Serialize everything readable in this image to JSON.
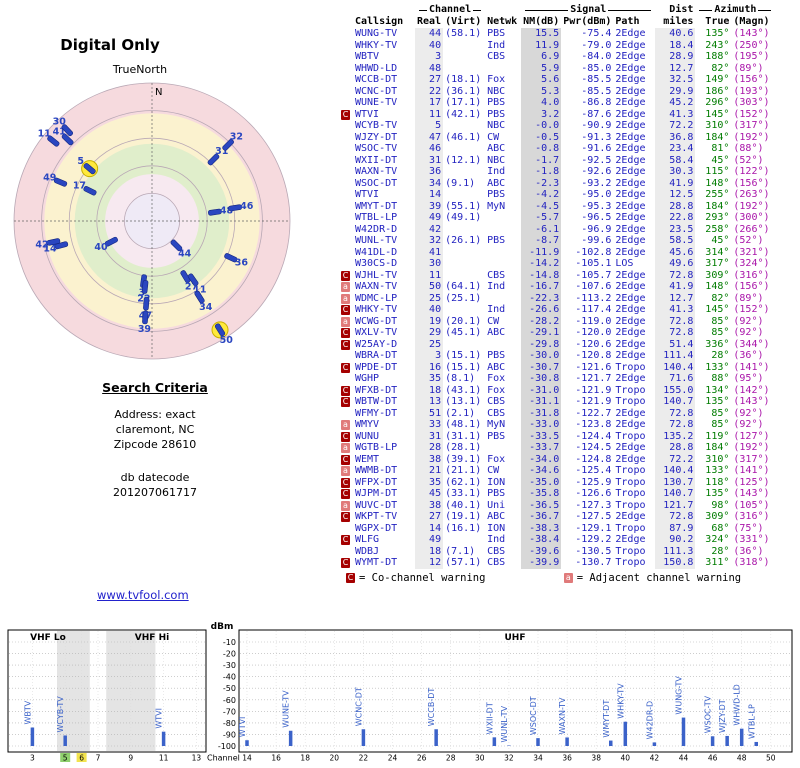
{
  "page": {
    "title": "Digital Only"
  },
  "radar": {
    "north": "N",
    "true_north": "TrueNorth",
    "markers": [
      {
        "ch": "44",
        "az": 135,
        "r": 0.25,
        "hl": false
      },
      {
        "ch": "40",
        "az": 243,
        "r": 0.33,
        "hl": false
      },
      {
        "ch": "3",
        "az": 188,
        "r": 0.44,
        "hl": false
      },
      {
        "ch": "48",
        "az": 82,
        "r": 0.46,
        "hl": false
      },
      {
        "ch": "27",
        "az": 149,
        "r": 0.47,
        "hl": false
      },
      {
        "ch": "22",
        "az": 186,
        "r": 0.48,
        "hl": false
      },
      {
        "ch": "17",
        "az": 296,
        "r": 0.5,
        "hl": false
      },
      {
        "ch": "11",
        "az": 145,
        "r": 0.52,
        "hl": false
      },
      {
        "ch": "5",
        "az": 310,
        "r": 0.59,
        "hl": true
      },
      {
        "ch": "47",
        "az": 184,
        "r": 0.6,
        "hl": false
      },
      {
        "ch": "46",
        "az": 81,
        "r": 0.61,
        "hl": false
      },
      {
        "ch": "31",
        "az": 45,
        "r": 0.63,
        "hl": false
      },
      {
        "ch": "36",
        "az": 115,
        "r": 0.63,
        "hl": false
      },
      {
        "ch": "34",
        "az": 148,
        "r": 0.65,
        "hl": false
      },
      {
        "ch": "14",
        "az": 255,
        "r": 0.68,
        "hl": false
      },
      {
        "ch": "39",
        "az": 184,
        "r": 0.7,
        "hl": false
      },
      {
        "ch": "49",
        "az": 293,
        "r": 0.72,
        "hl": false
      },
      {
        "ch": "42",
        "az": 258,
        "r": 0.73,
        "hl": false
      },
      {
        "ch": "32",
        "az": 45,
        "r": 0.78,
        "hl": false
      },
      {
        "ch": "41",
        "az": 314,
        "r": 0.85,
        "hl": false
      },
      {
        "ch": "30",
        "az": 317,
        "r": 0.9,
        "hl": false
      },
      {
        "ch": "11",
        "az": 309,
        "r": 0.92,
        "hl": false
      },
      {
        "ch": "50",
        "az": 148,
        "r": 0.93,
        "hl": true
      }
    ]
  },
  "search": {
    "heading": "Search Criteria",
    "address_lines": [
      "Address: exact",
      "claremont, NC",
      "Zipcode 28610"
    ],
    "datecode_lines": [
      "db datecode",
      "201207061717"
    ]
  },
  "link": {
    "url_text": "www.tvfool.com"
  },
  "table": {
    "group_headers": {
      "channel": "Channel",
      "signal": "Signal",
      "dist": "Dist",
      "azimuth": "Azimuth"
    },
    "columns": {
      "callsign": "Callsign",
      "real": "Real",
      "virt": "(Virt)",
      "netwk": "Netwk",
      "nm": "NM(dB)",
      "pwr": "Pwr(dBm)",
      "path": "Path",
      "miles": "miles",
      "true": "True",
      "magn": "(Magn)"
    },
    "row_fields": [
      "warn",
      "callsign",
      "real",
      "virt",
      "netwk",
      "nm_db",
      "pwr_dbm",
      "path",
      "miles",
      "az_true",
      "az_magn"
    ],
    "rows": [
      [
        "",
        "WUNG-TV",
        "44",
        "(58.1)",
        "PBS",
        "15.5",
        "-75.4",
        "2Edge",
        "40.6",
        "135°",
        "(143°)"
      ],
      [
        "",
        "WHKY-TV",
        "40",
        "",
        "Ind",
        "11.9",
        "-79.0",
        "2Edge",
        "18.4",
        "243°",
        "(250°)"
      ],
      [
        "",
        "WBTV",
        "3",
        "",
        "CBS",
        "6.9",
        "-84.0",
        "2Edge",
        "28.9",
        "188°",
        "(195°)"
      ],
      [
        "",
        "WHWD-LD",
        "48",
        "",
        "",
        "5.9",
        "-85.0",
        "2Edge",
        "12.7",
        "82°",
        "(89°)"
      ],
      [
        "",
        "WCCB-DT",
        "27",
        "(18.1)",
        "Fox",
        "5.6",
        "-85.5",
        "2Edge",
        "32.5",
        "149°",
        "(156°)"
      ],
      [
        "",
        "WCNC-DT",
        "22",
        "(36.1)",
        "NBC",
        "5.3",
        "-85.5",
        "2Edge",
        "29.9",
        "186°",
        "(193°)"
      ],
      [
        "",
        "WUNE-TV",
        "17",
        "(17.1)",
        "PBS",
        "4.0",
        "-86.8",
        "2Edge",
        "45.2",
        "296°",
        "(303°)"
      ],
      [
        "C",
        "WTVI",
        "11",
        "(42.1)",
        "PBS",
        "3.2",
        "-87.6",
        "2Edge",
        "41.3",
        "145°",
        "(152°)"
      ],
      [
        "",
        "WCYB-TV",
        "5",
        "",
        "NBC",
        "-0.0",
        "-90.9",
        "2Edge",
        "72.2",
        "310°",
        "(317°)"
      ],
      [
        "",
        "WJZY-DT",
        "47",
        "(46.1)",
        "CW",
        "-0.5",
        "-91.3",
        "2Edge",
        "36.8",
        "184°",
        "(192°)"
      ],
      [
        "",
        "WSOC-TV",
        "46",
        "",
        "ABC",
        "-0.8",
        "-91.6",
        "2Edge",
        "23.4",
        "81°",
        "(88°)"
      ],
      [
        "",
        "WXII-DT",
        "31",
        "(12.1)",
        "NBC",
        "-1.7",
        "-92.5",
        "2Edge",
        "58.4",
        "45°",
        "(52°)"
      ],
      [
        "",
        "WAXN-TV",
        "36",
        "",
        "Ind",
        "-1.8",
        "-92.6",
        "2Edge",
        "30.3",
        "115°",
        "(122°)"
      ],
      [
        "",
        "WSOC-DT",
        "34",
        "(9.1)",
        "ABC",
        "-2.3",
        "-93.2",
        "2Edge",
        "41.9",
        "148°",
        "(156°)"
      ],
      [
        "",
        "WTVI",
        "14",
        "",
        "PBS",
        "-4.2",
        "-95.0",
        "2Edge",
        "12.5",
        "255°",
        "(263°)"
      ],
      [
        "",
        "WMYT-DT",
        "39",
        "(55.1)",
        "MyN",
        "-4.5",
        "-95.3",
        "2Edge",
        "28.8",
        "184°",
        "(192°)"
      ],
      [
        "",
        "WTBL-LP",
        "49",
        "(49.1)",
        "",
        "-5.7",
        "-96.5",
        "2Edge",
        "22.8",
        "293°",
        "(300°)"
      ],
      [
        "",
        "W42DR-D",
        "42",
        "",
        "",
        "-6.1",
        "-96.9",
        "2Edge",
        "23.5",
        "258°",
        "(266°)"
      ],
      [
        "",
        "WUNL-TV",
        "32",
        "(26.1)",
        "PBS",
        "-8.7",
        "-99.6",
        "2Edge",
        "58.5",
        "45°",
        "(52°)"
      ],
      [
        "",
        "W41DL-D",
        "41",
        "",
        "",
        "-11.9",
        "-102.8",
        "2Edge",
        "45.6",
        "314°",
        "(321°)"
      ],
      [
        "",
        "W30CS-D",
        "30",
        "",
        "",
        "-14.2",
        "-105.1",
        "LOS",
        "49.6",
        "317°",
        "(324°)"
      ],
      [
        "C",
        "WJHL-TV",
        "11",
        "",
        "CBS",
        "-14.8",
        "-105.7",
        "2Edge",
        "72.8",
        "309°",
        "(316°)"
      ],
      [
        "a",
        "WAXN-TV",
        "50",
        "(64.1)",
        "Ind",
        "-16.7",
        "-107.6",
        "2Edge",
        "41.9",
        "148°",
        "(156°)"
      ],
      [
        "a",
        "WDMC-LP",
        "25",
        "(25.1)",
        "",
        "-22.3",
        "-113.2",
        "2Edge",
        "12.7",
        "82°",
        "(89°)"
      ],
      [
        "C",
        "WHKY-TV",
        "40",
        "",
        "Ind",
        "-26.6",
        "-117.4",
        "2Edge",
        "41.3",
        "145°",
        "(152°)"
      ],
      [
        "a",
        "WCWG-DT",
        "19",
        "(20.1)",
        "CW",
        "-28.2",
        "-119.0",
        "2Edge",
        "72.8",
        "85°",
        "(92°)"
      ],
      [
        "C",
        "WXLV-TV",
        "29",
        "(45.1)",
        "ABC",
        "-29.1",
        "-120.0",
        "2Edge",
        "72.8",
        "85°",
        "(92°)"
      ],
      [
        "C",
        "W25AY-D",
        "25",
        "",
        "",
        "-29.8",
        "-120.6",
        "2Edge",
        "51.4",
        "336°",
        "(344°)"
      ],
      [
        "",
        "WBRA-DT",
        "3",
        "(15.1)",
        "PBS",
        "-30.0",
        "-120.8",
        "2Edge",
        "111.4",
        "28°",
        "(36°)"
      ],
      [
        "C",
        "WPDE-DT",
        "16",
        "(15.1)",
        "ABC",
        "-30.7",
        "-121.6",
        "Tropo",
        "140.4",
        "133°",
        "(141°)"
      ],
      [
        "",
        "WGHP",
        "35",
        "(8.1)",
        "Fox",
        "-30.8",
        "-121.7",
        "2Edge",
        "71.6",
        "88°",
        "(95°)"
      ],
      [
        "C",
        "WFXB-DT",
        "18",
        "(43.1)",
        "Fox",
        "-31.0",
        "-121.9",
        "Tropo",
        "155.0",
        "134°",
        "(142°)"
      ],
      [
        "C",
        "WBTW-DT",
        "13",
        "(13.1)",
        "CBS",
        "-31.1",
        "-121.9",
        "Tropo",
        "140.7",
        "135°",
        "(143°)"
      ],
      [
        "",
        "WFMY-DT",
        "51",
        "(2.1)",
        "CBS",
        "-31.8",
        "-122.7",
        "2Edge",
        "72.8",
        "85°",
        "(92°)"
      ],
      [
        "a",
        "WMYV",
        "33",
        "(48.1)",
        "MyN",
        "-33.0",
        "-123.8",
        "2Edge",
        "72.8",
        "85°",
        "(92°)"
      ],
      [
        "C",
        "WUNU",
        "31",
        "(31.1)",
        "PBS",
        "-33.5",
        "-124.4",
        "Tropo",
        "135.2",
        "119°",
        "(127°)"
      ],
      [
        "a",
        "WGTB-LP",
        "28",
        "(28.1)",
        "",
        "-33.7",
        "-124.5",
        "2Edge",
        "28.8",
        "184°",
        "(192°)"
      ],
      [
        "C",
        "WEMT",
        "38",
        "(39.1)",
        "Fox",
        "-34.0",
        "-124.8",
        "2Edge",
        "72.2",
        "310°",
        "(317°)"
      ],
      [
        "a",
        "WWMB-DT",
        "21",
        "(21.1)",
        "CW",
        "-34.6",
        "-125.4",
        "Tropo",
        "140.4",
        "133°",
        "(141°)"
      ],
      [
        "C",
        "WFPX-DT",
        "35",
        "(62.1)",
        "ION",
        "-35.0",
        "-125.9",
        "Tropo",
        "130.7",
        "118°",
        "(125°)"
      ],
      [
        "C",
        "WJPM-DT",
        "45",
        "(33.1)",
        "PBS",
        "-35.8",
        "-126.6",
        "Tropo",
        "140.7",
        "135°",
        "(143°)"
      ],
      [
        "a",
        "WUVC-DT",
        "38",
        "(40.1)",
        "Uni",
        "-36.5",
        "-127.3",
        "Tropo",
        "121.7",
        "98°",
        "(105°)"
      ],
      [
        "C",
        "WKPT-TV",
        "27",
        "(19.1)",
        "ABC",
        "-36.7",
        "-127.5",
        "2Edge",
        "72.8",
        "309°",
        "(316°)"
      ],
      [
        "",
        "WGPX-DT",
        "14",
        "(16.1)",
        "ION",
        "-38.3",
        "-129.1",
        "Tropo",
        "87.9",
        "68°",
        "(75°)"
      ],
      [
        "C",
        "WLFG",
        "49",
        "",
        "Ind",
        "-38.4",
        "-129.2",
        "2Edge",
        "90.2",
        "324°",
        "(331°)"
      ],
      [
        "",
        "WDBJ",
        "18",
        "(7.1)",
        "CBS",
        "-39.6",
        "-130.5",
        "Tropo",
        "111.3",
        "28°",
        "(36°)"
      ],
      [
        "C",
        "WYMT-DT",
        "12",
        "(57.1)",
        "CBS",
        "-39.9",
        "-130.7",
        "Tropo",
        "150.8",
        "311°",
        "(318°)"
      ]
    ]
  },
  "legend": {
    "c_symbol": "C",
    "c_text": "= Co-channel warning",
    "a_symbol": "a",
    "a_text": "= Adjacent channel warning"
  },
  "chart": {
    "type": "bar",
    "dbm_label": "dBm",
    "channel_label": "Channel",
    "y_ticks": [
      -10,
      -20,
      -30,
      -40,
      -50,
      -60,
      -70,
      -80,
      -90,
      -100
    ],
    "vhf": {
      "lo_label": "VHF Lo",
      "hi_label": "VHF Hi",
      "ch_min": 2,
      "ch_max": 13,
      "bands": [
        [
          4.5,
          6.5
        ],
        [
          7.5,
          10.5
        ]
      ],
      "ticks": [
        {
          "t": "3"
        },
        {
          "t": "5",
          "bg": "#8fd06d"
        },
        {
          "t": "6",
          "bg": "#f2e34e"
        },
        {
          "t": "7"
        },
        {
          "t": "9"
        },
        {
          "t": "11"
        },
        {
          "t": "13"
        }
      ],
      "bars": [
        {
          "ch": 3,
          "pwr": -84.0,
          "label": "WBTV"
        },
        {
          "ch": 5,
          "pwr": -90.9,
          "label": "WCYB-TV"
        },
        {
          "ch": 11,
          "pwr": -87.6,
          "label": "WTVI"
        }
      ]
    },
    "uhf": {
      "label": "UHF",
      "ch_min": 14,
      "ch_max": 51,
      "ticks": [
        {
          "t": "14"
        },
        {
          "t": "16"
        },
        {
          "t": "18"
        },
        {
          "t": "20"
        },
        {
          "t": "22"
        },
        {
          "t": "24"
        },
        {
          "t": "26"
        },
        {
          "t": "28"
        },
        {
          "t": "30"
        },
        {
          "t": "32"
        },
        {
          "t": "34"
        },
        {
          "t": "36"
        },
        {
          "t": "38"
        },
        {
          "t": "40"
        },
        {
          "t": "42"
        },
        {
          "t": "44"
        },
        {
          "t": "46"
        },
        {
          "t": "48"
        },
        {
          "t": "50"
        }
      ],
      "bars": [
        {
          "ch": 14,
          "pwr": -95.0,
          "label": "WTVI"
        },
        {
          "ch": 17,
          "pwr": -86.8,
          "label": "WUNE-TV"
        },
        {
          "ch": 22,
          "pwr": -85.5,
          "label": "WCNC-DT"
        },
        {
          "ch": 27,
          "pwr": -85.5,
          "label": "WCCB-DT"
        },
        {
          "ch": 31,
          "pwr": -92.5,
          "label": "WXII-DT"
        },
        {
          "ch": 32,
          "pwr": -99.6,
          "label": "WUNL-TV"
        },
        {
          "ch": 34,
          "pwr": -93.2,
          "label": "WSOC-DT"
        },
        {
          "ch": 36,
          "pwr": -92.6,
          "label": "WAXN-TV"
        },
        {
          "ch": 39,
          "pwr": -95.3,
          "label": "WMYT-DT"
        },
        {
          "ch": 40,
          "pwr": -79.0,
          "label": "WHKY-TV"
        },
        {
          "ch": 42,
          "pwr": -96.9,
          "label": "W42DR-D"
        },
        {
          "ch": 44,
          "pwr": -75.4,
          "label": "WUNG-TV"
        },
        {
          "ch": 46,
          "pwr": -91.6,
          "label": "WSOC-TV"
        },
        {
          "ch": 47,
          "pwr": -91.3,
          "label": "WJZY-DT"
        },
        {
          "ch": 48,
          "pwr": -85.0,
          "label": "WHWD-LD"
        },
        {
          "ch": 49,
          "pwr": -96.5,
          "label": "WTBL-LP"
        }
      ]
    }
  }
}
